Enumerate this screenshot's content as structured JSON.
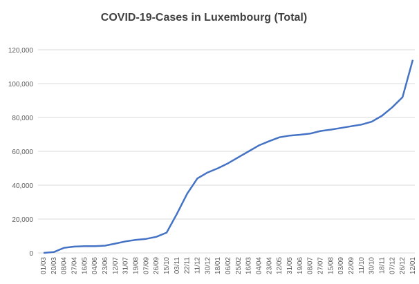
{
  "chart_data": {
    "type": "line",
    "title": "COVID-19-Cases in Luxembourg (Total)",
    "categories": [
      "01/03",
      "20/03",
      "08/04",
      "27/04",
      "16/05",
      "04/06",
      "23/06",
      "12/07",
      "31/07",
      "19/08",
      "07/09",
      "26/09",
      "15/10",
      "03/11",
      "22/11",
      "11/12",
      "30/12",
      "18/01",
      "06/02",
      "25/02",
      "16/03",
      "04/04",
      "23/04",
      "12/05",
      "31/05",
      "19/06",
      "08/07",
      "27/07",
      "15/08",
      "03/09",
      "22/09",
      "11/10",
      "30/10",
      "18/11",
      "07/12",
      "26/12",
      "12/01"
    ],
    "series": [
      {
        "color": "#4472c4",
        "values": [
          0,
          500,
          3000,
          3700,
          3950,
          4000,
          4300,
          5500,
          6800,
          7700,
          8300,
          9500,
          12000,
          23000,
          35000,
          44000,
          47500,
          50000,
          53000,
          56500,
          60000,
          63500,
          66000,
          68300,
          69300,
          69800,
          70500,
          72000,
          72800,
          73800,
          74800,
          75800,
          77500,
          81000,
          86000,
          92000,
          114000
        ]
      }
    ],
    "ylim": [
      0,
      120000
    ],
    "yticks": [
      0,
      {
        "value": 20000,
        "label": "20,000"
      },
      {
        "value": 40000,
        "label": "40,000"
      },
      {
        "value": 60000,
        "label": "60,000"
      },
      {
        "value": 80000,
        "label": "80,000"
      },
      {
        "value": 100000,
        "label": "100,000"
      },
      {
        "value": 120000,
        "label": "120,000"
      }
    ],
    "grid": true
  }
}
